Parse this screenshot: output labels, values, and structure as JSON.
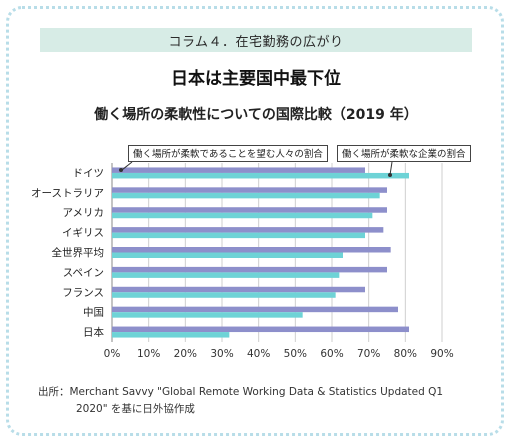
{
  "banner": "コラム４．在宅勤務の広がり",
  "headline": "日本は主要国中最下位",
  "chart_data": {
    "type": "bar",
    "orientation": "horizontal",
    "title": "働く場所の柔軟性についての国際比較（2019 年）",
    "categories": [
      "ドイツ",
      "オーストラリア",
      "アメリカ",
      "イギリス",
      "全世界平均",
      "スペイン",
      "フランス",
      "中国",
      "日本"
    ],
    "series": [
      {
        "name": "働く場所が柔軟であることを望む人々の割合",
        "color": "#8d8fcb",
        "values": [
          69,
          75,
          75,
          74,
          76,
          75,
          69,
          78,
          81
        ]
      },
      {
        "name": "働く場所が柔軟な企業の割合",
        "color": "#6ed3d6",
        "values": [
          81,
          73,
          71,
          69,
          63,
          62,
          61,
          52,
          32
        ]
      }
    ],
    "xlim": [
      0,
      90
    ],
    "xticks": [
      "0%",
      "10%",
      "20%",
      "30%",
      "40%",
      "50%",
      "60%",
      "70%",
      "80%",
      "90%"
    ],
    "grid": true,
    "legend": "top, callout boxes"
  },
  "source_line1": "出所：Merchant Savvy \"Global Remote Working Data & Statistics Updated Q1",
  "source_line2": "2020\" を基に日外協作成"
}
